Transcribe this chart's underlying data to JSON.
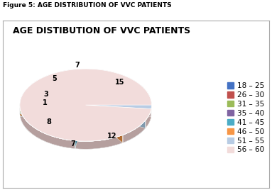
{
  "title": "AGE DISTIBUTION OF VVC PATIENTS",
  "figure_label": "Figure 5: AGE DISTRIBUTION OF VVC PATIENTS",
  "labels": [
    "18 – 25",
    "26 – 30",
    "31 – 35",
    "35 – 40",
    "41 – 45",
    "46 – 50",
    "51 – 55",
    "56 – 60"
  ],
  "values": [
    8,
    7,
    12,
    15,
    7,
    5,
    3,
    1
  ],
  "colors": [
    "#4472c4",
    "#c0504d",
    "#9bbb59",
    "#8064a2",
    "#4bacc6",
    "#f79646",
    "#b8cce4",
    "#f2dcdb"
  ],
  "dark_colors": [
    "#2d4f8e",
    "#8b3a38",
    "#6e8a3f",
    "#5a4775",
    "#357a91",
    "#b06b30",
    "#8099ad",
    "#b59f9e"
  ],
  "autopct_labels": [
    "8",
    "7",
    "12",
    "15",
    "7",
    "5",
    "3",
    "1"
  ],
  "startangle": 90,
  "depth": 0.12,
  "title_fontsize": 9,
  "legend_fontsize": 7.5
}
